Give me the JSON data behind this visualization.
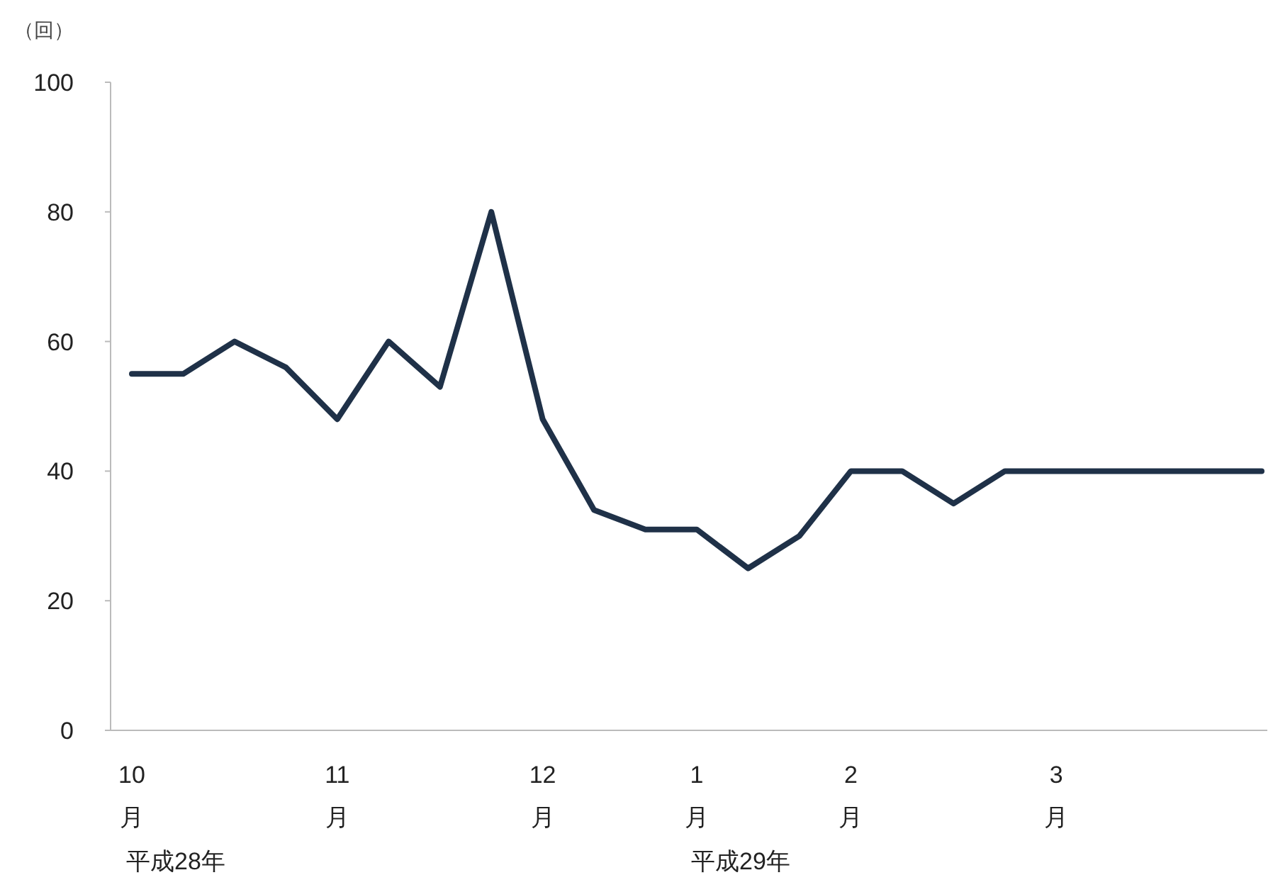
{
  "chart_data": {
    "type": "line",
    "ylabel": "（回）",
    "categories": [
      "10月",
      null,
      null,
      null,
      "11月",
      null,
      null,
      null,
      "12月",
      null,
      null,
      "1月",
      null,
      null,
      "2月",
      null,
      null,
      null,
      "3月",
      null,
      null,
      null,
      null
    ],
    "series": [
      {
        "color": "#1f3148",
        "values": [
          55,
          55,
          60,
          56,
          48,
          60,
          53,
          80,
          48,
          34,
          31,
          31,
          25,
          30,
          40,
          40,
          35,
          40,
          40,
          40,
          40,
          40,
          40
        ]
      }
    ],
    "ylim": [
      0,
      100
    ],
    "yticks": [
      0,
      20,
      40,
      60,
      80,
      100
    ],
    "grid": false,
    "marker": "none",
    "line_style": "solid",
    "annotations": [
      "平成28年",
      "平成29年"
    ]
  }
}
